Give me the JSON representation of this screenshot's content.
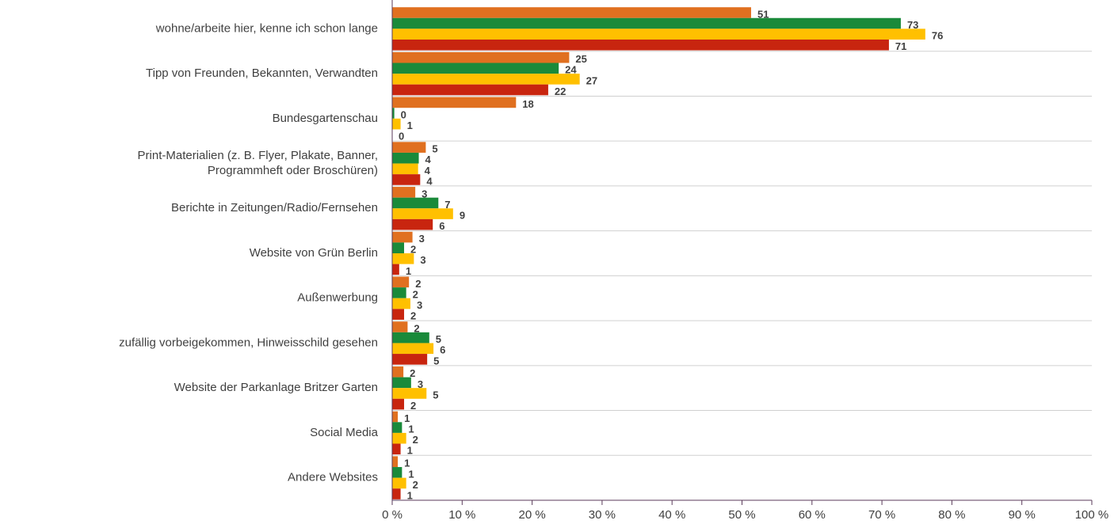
{
  "chart_data": {
    "type": "hbar",
    "categories": [
      "wohne/arbeite hier, kenne ich schon lange",
      "Tipp von Freunden, Bekannten, Verwandten",
      "Bundesgartenschau",
      "Print-Materialien (z. B. Flyer, Plakate, Banner,\nProgrammheft oder Broschüren)",
      "Berichte in Zeitungen/Radio/Fernsehen",
      "Website von Grün Berlin",
      "Außenwerbung",
      "zufällig vorbeigekommen, Hinweisschild gesehen",
      "Website der Parkanlage Britzer Garten",
      "Social Media",
      "Andere Websites"
    ],
    "series": [
      {
        "color": "#e07020",
        "values": [
          51.3,
          25.3,
          17.7,
          4.8,
          3.3,
          2.9,
          2.4,
          2.2,
          1.6,
          0.8,
          0.8
        ],
        "value_labels": [
          "51",
          "25",
          "18",
          "5",
          "3",
          "3",
          "2",
          "2",
          "2",
          "1",
          "1"
        ]
      },
      {
        "color": "#1a8a3a",
        "values": [
          72.7,
          23.8,
          0.3,
          3.8,
          6.6,
          1.7,
          2.0,
          5.3,
          2.7,
          1.4,
          1.4
        ],
        "value_labels": [
          "73",
          "24",
          "0",
          "4",
          "7",
          "2",
          "2",
          "5",
          "3",
          "1",
          "1"
        ]
      },
      {
        "color": "#ffc000",
        "values": [
          76.2,
          26.8,
          1.2,
          3.7,
          8.7,
          3.1,
          2.6,
          5.9,
          4.9,
          2.0,
          2.0
        ],
        "value_labels": [
          "76",
          "27",
          "1",
          "4",
          "9",
          "3",
          "3",
          "6",
          "5",
          "2",
          "2"
        ]
      },
      {
        "color": "#c8250f",
        "values": [
          71.0,
          22.3,
          0,
          4.0,
          5.8,
          1.0,
          1.7,
          5.0,
          1.7,
          1.2,
          1.2
        ],
        "value_labels": [
          "71",
          "22",
          "0",
          "4",
          "6",
          "1",
          "2",
          "5",
          "2",
          "1",
          "1"
        ]
      }
    ],
    "xlim": [
      0,
      100
    ],
    "xticks": [
      {
        "value": 0,
        "label": "0 %"
      },
      {
        "value": 10,
        "label": "10 %"
      },
      {
        "value": 20,
        "label": "20 %"
      },
      {
        "value": 30,
        "label": "30 %"
      },
      {
        "value": 40,
        "label": "40 %"
      },
      {
        "value": 50,
        "label": "50 %"
      },
      {
        "value": 60,
        "label": "60 %"
      },
      {
        "value": 70,
        "label": "70 %"
      },
      {
        "value": 80,
        "label": "80 %"
      },
      {
        "value": 90,
        "label": "90 %"
      },
      {
        "value": 100,
        "label": "100 %"
      }
    ]
  }
}
